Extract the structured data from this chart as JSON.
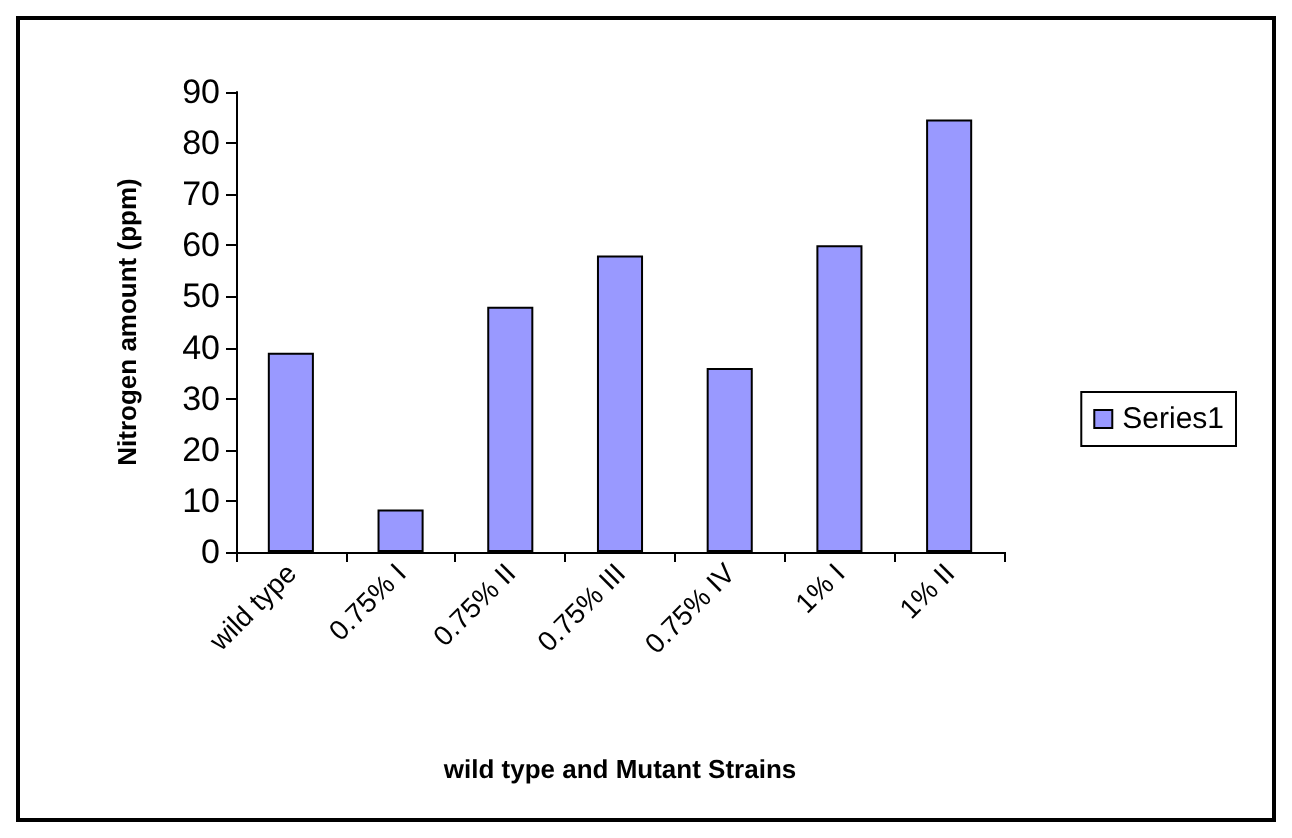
{
  "chart_data": {
    "type": "bar",
    "xlabel": "wild type and Mutant Strains",
    "ylabel": "Nitrogen amount (ppm)",
    "categories": [
      "wild type",
      "0.75% I",
      "0.75% II",
      "0.75% III",
      "0.75% IV",
      "1% I",
      "1% II"
    ],
    "series": [
      {
        "name": "Series1",
        "color": "#9999ff",
        "values": [
          39,
          8.3,
          48,
          58,
          36,
          60,
          84.6
        ]
      }
    ],
    "ylim": [
      0,
      90
    ],
    "yticks": [
      0,
      10,
      20,
      30,
      40,
      50,
      60,
      70,
      80,
      90
    ],
    "grid": false,
    "legend": "right"
  }
}
